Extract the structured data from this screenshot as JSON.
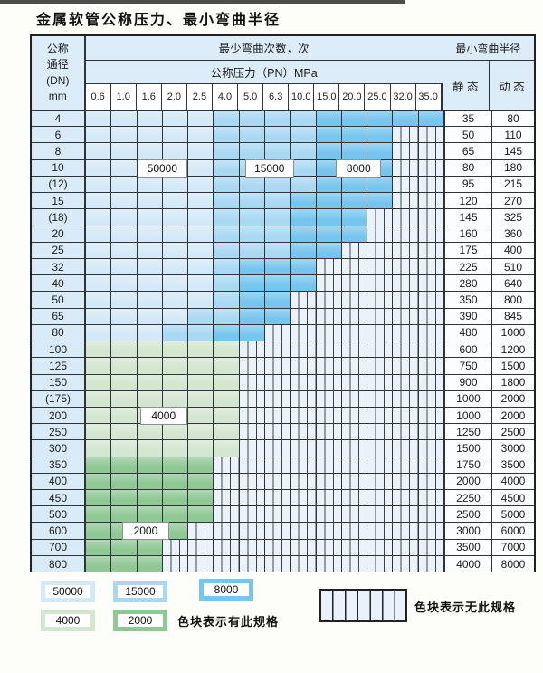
{
  "title": "金属软管公称压力、最小弯曲半径",
  "colors": {
    "c50000": "#d4e9f7",
    "c15000": "#a9d8f3",
    "c8000": "#76c5ee",
    "c4000": "#d3e6d0",
    "c2000": "#8fc795",
    "stripe_bg": "#eaf2fa",
    "grid": "#2f3439",
    "header_bg": "#dcedf9"
  },
  "table": {
    "header": {
      "dn_lines": [
        "公称",
        "通径",
        "(DN)",
        "mm"
      ],
      "bend_cycles": "最少弯曲次数，次",
      "pressure": "公称压力（PN）MPa",
      "radius": "最小弯曲半径",
      "static": "静 态",
      "dynamic": "动 态",
      "pressure_cols": [
        "0.6",
        "1.0",
        "1.6",
        "2.0",
        "2.5",
        "4.0",
        "5.0",
        "6.3",
        "10.0",
        "15.0",
        "20.0",
        "25.0",
        "32.0",
        "35.0"
      ]
    },
    "rows": [
      {
        "dn": "4",
        "static": "35",
        "dynamic": "80",
        "seg": [
          [
            "c50000",
            0,
            4
          ],
          [
            "c15000",
            5,
            8
          ],
          [
            "c8000",
            9,
            13
          ]
        ],
        "stripes_from": null
      },
      {
        "dn": "6",
        "static": "50",
        "dynamic": "110",
        "seg": [
          [
            "c50000",
            0,
            4
          ],
          [
            "c15000",
            5,
            8
          ],
          [
            "c8000",
            9,
            11
          ]
        ],
        "stripes_from": 12
      },
      {
        "dn": "8",
        "static": "65",
        "dynamic": "145",
        "seg": [
          [
            "c50000",
            0,
            4
          ],
          [
            "c15000",
            5,
            8
          ],
          [
            "c8000",
            9,
            11
          ]
        ],
        "stripes_from": 12
      },
      {
        "dn": "10",
        "static": "80",
        "dynamic": "180",
        "seg": [
          [
            "c50000",
            0,
            4
          ],
          [
            "c15000",
            5,
            8
          ],
          [
            "c8000",
            9,
            11
          ]
        ],
        "stripes_from": 12
      },
      {
        "dn": "(12)",
        "static": "95",
        "dynamic": "215",
        "seg": [
          [
            "c50000",
            0,
            4
          ],
          [
            "c15000",
            5,
            8
          ],
          [
            "c8000",
            9,
            11
          ]
        ],
        "stripes_from": 12
      },
      {
        "dn": "15",
        "static": "120",
        "dynamic": "270",
        "seg": [
          [
            "c50000",
            0,
            4
          ],
          [
            "c15000",
            5,
            7
          ],
          [
            "c8000",
            8,
            11
          ]
        ],
        "stripes_from": 12
      },
      {
        "dn": "(18)",
        "static": "145",
        "dynamic": "325",
        "seg": [
          [
            "c50000",
            0,
            4
          ],
          [
            "c15000",
            5,
            7
          ],
          [
            "c8000",
            8,
            10
          ]
        ],
        "stripes_from": 11
      },
      {
        "dn": "20",
        "static": "160",
        "dynamic": "360",
        "seg": [
          [
            "c50000",
            0,
            4
          ],
          [
            "c15000",
            5,
            7
          ],
          [
            "c8000",
            8,
            10
          ]
        ],
        "stripes_from": 11
      },
      {
        "dn": "25",
        "static": "175",
        "dynamic": "400",
        "seg": [
          [
            "c50000",
            0,
            4
          ],
          [
            "c15000",
            5,
            7
          ],
          [
            "c8000",
            8,
            9
          ]
        ],
        "stripes_from": 10
      },
      {
        "dn": "32",
        "static": "225",
        "dynamic": "510",
        "seg": [
          [
            "c50000",
            0,
            4
          ],
          [
            "c15000",
            5,
            5
          ],
          [
            "c8000",
            6,
            8
          ]
        ],
        "stripes_from": 9
      },
      {
        "dn": "40",
        "static": "280",
        "dynamic": "640",
        "seg": [
          [
            "c50000",
            0,
            4
          ],
          [
            "c15000",
            5,
            5
          ],
          [
            "c8000",
            6,
            8
          ]
        ],
        "stripes_from": 9
      },
      {
        "dn": "50",
        "static": "350",
        "dynamic": "800",
        "seg": [
          [
            "c50000",
            0,
            4
          ],
          [
            "c15000",
            5,
            5
          ],
          [
            "c8000",
            6,
            7
          ]
        ],
        "stripes_from": 8
      },
      {
        "dn": "65",
        "static": "390",
        "dynamic": "845",
        "seg": [
          [
            "c50000",
            0,
            3
          ],
          [
            "c15000",
            4,
            5
          ],
          [
            "c8000",
            6,
            7
          ]
        ],
        "stripes_from": 8
      },
      {
        "dn": "80",
        "static": "480",
        "dynamic": "1000",
        "seg": [
          [
            "c50000",
            0,
            2
          ],
          [
            "c15000",
            3,
            4
          ],
          [
            "c8000",
            5,
            6
          ]
        ],
        "stripes_from": 7
      },
      {
        "dn": "100",
        "static": "600",
        "dynamic": "1200",
        "seg": [
          [
            "c4000",
            0,
            5
          ]
        ],
        "stripes_from": 6
      },
      {
        "dn": "125",
        "static": "750",
        "dynamic": "1500",
        "seg": [
          [
            "c4000",
            0,
            5
          ]
        ],
        "stripes_from": 6
      },
      {
        "dn": "150",
        "static": "900",
        "dynamic": "1800",
        "seg": [
          [
            "c4000",
            0,
            5
          ]
        ],
        "stripes_from": 6
      },
      {
        "dn": "(175)",
        "static": "1000",
        "dynamic": "2000",
        "seg": [
          [
            "c4000",
            0,
            5
          ]
        ],
        "stripes_from": 6
      },
      {
        "dn": "200",
        "static": "1000",
        "dynamic": "2000",
        "seg": [
          [
            "c4000",
            0,
            5
          ]
        ],
        "stripes_from": 6
      },
      {
        "dn": "250",
        "static": "1250",
        "dynamic": "2500",
        "seg": [
          [
            "c4000",
            0,
            5
          ]
        ],
        "stripes_from": 6
      },
      {
        "dn": "300",
        "static": "1500",
        "dynamic": "3000",
        "seg": [
          [
            "c4000",
            0,
            5
          ]
        ],
        "stripes_from": 6
      },
      {
        "dn": "350",
        "static": "1750",
        "dynamic": "3500",
        "seg": [
          [
            "c2000",
            0,
            4
          ]
        ],
        "stripes_from": 5
      },
      {
        "dn": "400",
        "static": "2000",
        "dynamic": "4000",
        "seg": [
          [
            "c2000",
            0,
            4
          ]
        ],
        "stripes_from": 5
      },
      {
        "dn": "450",
        "static": "2250",
        "dynamic": "4500",
        "seg": [
          [
            "c2000",
            0,
            4
          ]
        ],
        "stripes_from": 5
      },
      {
        "dn": "500",
        "static": "2500",
        "dynamic": "5000",
        "seg": [
          [
            "c2000",
            0,
            4
          ]
        ],
        "stripes_from": 5
      },
      {
        "dn": "600",
        "static": "3000",
        "dynamic": "6000",
        "seg": [
          [
            "c2000",
            0,
            3
          ]
        ],
        "stripes_from": 4
      },
      {
        "dn": "700",
        "static": "3500",
        "dynamic": "7000",
        "seg": [
          [
            "c2000",
            0,
            2
          ]
        ],
        "stripes_from": 3
      },
      {
        "dn": "800",
        "static": "4000",
        "dynamic": "8000",
        "seg": [
          [
            "c2000",
            0,
            2
          ]
        ],
        "stripes_from": 3
      }
    ],
    "overlay_labels": [
      {
        "text": "50000",
        "row": 3,
        "col_start": 2.0,
        "col_end": 3.95
      },
      {
        "text": "15000",
        "row": 3,
        "col_start": 6.2,
        "col_end": 8.1
      },
      {
        "text": "8000",
        "row": 3,
        "col_start": 9.75,
        "col_end": 11.5
      },
      {
        "text": "4000",
        "row": 18,
        "col_start": 2.1,
        "col_end": 3.95
      },
      {
        "text": "2000",
        "row": 25,
        "col_start": 1.4,
        "col_end": 3.25
      }
    ]
  },
  "legend": {
    "row1": [
      {
        "label": "50000",
        "color": "c50000"
      },
      {
        "label": "15000",
        "color": "c15000"
      },
      {
        "label": "8000",
        "color": "c8000"
      }
    ],
    "row2": [
      {
        "label": "4000",
        "color": "c4000"
      },
      {
        "label": "2000",
        "color": "c2000"
      }
    ],
    "has_spec_text": "色块表示有此规格",
    "no_spec_text": "色块表示无此规格"
  }
}
